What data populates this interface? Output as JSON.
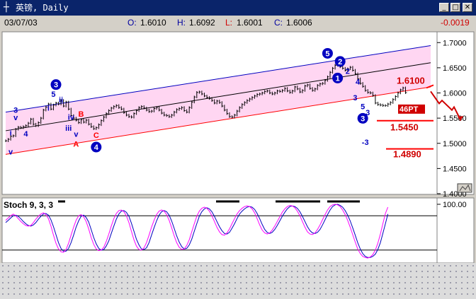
{
  "window": {
    "title": "英镑, Daily",
    "app_icon": "pitchfork-icon",
    "buttons": [
      "minimize-icon",
      "maximize-icon",
      "close-icon"
    ]
  },
  "info": {
    "date": "03/07/03",
    "open_label": "O:",
    "open": "1.6010",
    "high_label": "H:",
    "high": "1.6092",
    "low_label": "L:",
    "low": "1.6001",
    "close_label": "C:",
    "close": "1.6006",
    "change": "-0.0019"
  },
  "colors": {
    "background": "#ffffff",
    "channel_fill": "#ffd6f2",
    "channel_upper": "#0000c0",
    "channel_middle": "#000000",
    "channel_lower": "#ff0000",
    "wave_blue": "#0000c0",
    "wave_red": "#ff0000",
    "stoch_k": "#0000c0",
    "stoch_d": "#ff00ff"
  },
  "chart_data": [
    {
      "type": "line",
      "subtype": "price-bars",
      "x_count": 170,
      "ylim": [
        1.4,
        1.72
      ],
      "y_ticks": [
        "1.7000",
        "1.6500",
        "1.6000",
        "1.5500",
        "1.5000",
        "1.4500",
        "1.4000"
      ],
      "close": [
        1.505,
        1.508,
        1.514,
        1.515,
        1.528,
        1.532,
        1.531,
        1.533,
        1.535,
        1.54,
        1.548,
        1.538,
        1.535,
        1.541,
        1.55,
        1.566,
        1.572,
        1.578,
        1.568,
        1.576,
        1.58,
        1.578,
        1.585,
        1.574,
        1.582,
        1.568,
        1.555,
        1.55,
        1.546,
        1.541,
        1.547,
        1.542,
        1.546,
        1.538,
        1.533,
        1.529,
        1.531,
        1.537,
        1.545,
        1.552,
        1.559,
        1.565,
        1.57,
        1.573,
        1.575,
        1.571,
        1.568,
        1.561,
        1.556,
        1.553,
        1.552,
        1.559,
        1.565,
        1.571,
        1.573,
        1.57,
        1.566,
        1.563,
        1.564,
        1.569,
        1.571,
        1.566,
        1.56,
        1.556,
        1.555,
        1.553,
        1.556,
        1.562,
        1.567,
        1.569,
        1.571,
        1.565,
        1.562,
        1.571,
        1.582,
        1.592,
        1.601,
        1.602,
        1.598,
        1.594,
        1.591,
        1.589,
        1.585,
        1.58,
        1.584,
        1.581,
        1.574,
        1.566,
        1.559,
        1.553,
        1.552,
        1.556,
        1.564,
        1.571,
        1.577,
        1.581,
        1.585,
        1.588,
        1.591,
        1.594,
        1.597,
        1.598,
        1.6,
        1.603,
        1.604,
        1.6,
        1.598,
        1.6,
        1.604,
        1.603,
        1.605,
        1.609,
        1.604,
        1.601,
        1.604,
        1.612,
        1.608,
        1.602,
        1.605,
        1.614,
        1.616,
        1.609,
        1.605,
        1.608,
        1.615,
        1.618,
        1.619,
        1.625,
        1.632,
        1.641,
        1.649,
        1.655,
        1.66,
        1.652,
        1.649,
        1.645,
        1.648,
        1.651,
        1.645,
        1.638,
        1.628,
        1.619,
        1.613,
        1.605,
        1.601,
        1.6,
        1.595,
        1.58,
        1.577,
        1.576,
        1.575,
        1.575,
        1.578,
        1.581,
        1.587,
        1.593,
        1.6,
        1.606,
        1.61,
        1.6006
      ],
      "channel": {
        "upper": [
          [
            0,
            1.562
          ],
          [
            169,
            1.694
          ]
        ],
        "middle": [
          [
            0,
            1.525
          ],
          [
            169,
            1.66
          ]
        ],
        "lower": [
          [
            0,
            1.478
          ],
          [
            169,
            1.612
          ]
        ]
      },
      "wave_labels": [
        {
          "text": "i",
          "x": 2,
          "y": 1.516,
          "color": "blue",
          "circled": false
        },
        {
          "text": "v",
          "x": 2,
          "y": 1.478,
          "color": "blue",
          "circled": false
        },
        {
          "text": "3",
          "x": 4,
          "y": 1.561,
          "color": "blue",
          "circled": false
        },
        {
          "text": "v",
          "x": 4,
          "y": 1.546,
          "color": "blue",
          "circled": false
        },
        {
          "text": "4",
          "x": 8,
          "y": 1.514,
          "color": "blue",
          "circled": false
        },
        {
          "text": "3",
          "x": 20,
          "y": 1.611,
          "color": "blue",
          "circled": true
        },
        {
          "text": "5",
          "x": 19,
          "y": 1.592,
          "color": "blue",
          "circled": false
        },
        {
          "text": "ii",
          "x": 22,
          "y": 1.581,
          "color": "blue",
          "circled": false
        },
        {
          "text": "i",
          "x": 17,
          "y": 1.565,
          "color": "blue",
          "circled": false
        },
        {
          "text": "iv",
          "x": 26,
          "y": 1.547,
          "color": "blue",
          "circled": false
        },
        {
          "text": "B",
          "x": 30,
          "y": 1.553,
          "color": "red",
          "circled": false
        },
        {
          "text": "iii",
          "x": 25,
          "y": 1.525,
          "color": "blue",
          "circled": false
        },
        {
          "text": "v",
          "x": 28,
          "y": 1.513,
          "color": "blue",
          "circled": false
        },
        {
          "text": "A",
          "x": 28,
          "y": 1.493,
          "color": "red",
          "circled": false
        },
        {
          "text": "C",
          "x": 36,
          "y": 1.511,
          "color": "red",
          "circled": false
        },
        {
          "text": "4",
          "x": 36,
          "y": 1.487,
          "color": "blue",
          "circled": true
        },
        {
          "text": "5",
          "x": 128,
          "y": 1.673,
          "color": "blue",
          "circled": true
        },
        {
          "text": "2",
          "x": 133,
          "y": 1.657,
          "color": "blue",
          "circled": true
        },
        {
          "text": "2",
          "x": 136,
          "y": 1.638,
          "color": "blue",
          "circled": false
        },
        {
          "text": "1",
          "x": 132,
          "y": 1.624,
          "color": "blue",
          "circled": true
        },
        {
          "text": "4",
          "x": 140,
          "y": 1.617,
          "color": "blue",
          "circled": false
        },
        {
          "text": "3",
          "x": 139,
          "y": 1.585,
          "color": "blue",
          "circled": false
        },
        {
          "text": "5",
          "x": 142,
          "y": 1.568,
          "color": "blue",
          "circled": false
        },
        {
          "text": "3",
          "x": 144,
          "y": 1.556,
          "color": "blue",
          "circled": false
        },
        {
          "text": "3",
          "x": 142,
          "y": 1.544,
          "color": "blue",
          "circled": true
        },
        {
          "text": "-3",
          "x": 143,
          "y": 1.497,
          "color": "blue",
          "circled": false
        }
      ],
      "annotations": [
        {
          "text": "1.6100",
          "value": 1.61
        },
        {
          "text": "46PT",
          "value": 1.563
        },
        {
          "text": "1.5450",
          "value": 1.545
        },
        {
          "text": "1.4890",
          "value": 1.489
        }
      ]
    },
    {
      "type": "line",
      "title": "Stoch 9, 3, 3",
      "ylim": [
        0,
        100
      ],
      "y_ticks": [
        "100.00"
      ],
      "series": [
        {
          "values": [
            72,
            76,
            80,
            83,
            80,
            75,
            70,
            66,
            63,
            62,
            63,
            68,
            74,
            79,
            83,
            85,
            82,
            75,
            62,
            46,
            32,
            22,
            17,
            16,
            21,
            32,
            46,
            60,
            72,
            80,
            82,
            78,
            70,
            57,
            42,
            30,
            22,
            19,
            20,
            25,
            35,
            48,
            62,
            75,
            84,
            89,
            90,
            87,
            80,
            68,
            53,
            38,
            27,
            21,
            20,
            24,
            33,
            46,
            60,
            72,
            82,
            88,
            90,
            88,
            82,
            72,
            59,
            45,
            33,
            25,
            21,
            22,
            28,
            38,
            52,
            66,
            79,
            88,
            93,
            95,
            93,
            88,
            80,
            70,
            60,
            52,
            47,
            46,
            50,
            57,
            66,
            75,
            83,
            89,
            93,
            96,
            97,
            96,
            92,
            85,
            75,
            64,
            55,
            50,
            48,
            50,
            55,
            62,
            70,
            78,
            86,
            92,
            96,
            98,
            97,
            94,
            88,
            80,
            70,
            60,
            52,
            48,
            47,
            50,
            56,
            64,
            73,
            82,
            90,
            96,
            99,
            100,
            99,
            96,
            90,
            82,
            72,
            60,
            47,
            34,
            22,
            14,
            9,
            7,
            6,
            8,
            12,
            20,
            32,
            48,
            66,
            84,
            95
          ]
        },
        {
          "values": [
            68,
            72,
            76,
            80,
            81,
            79,
            75,
            70,
            66,
            63,
            62,
            64,
            68,
            74,
            79,
            83,
            84,
            81,
            73,
            61,
            47,
            33,
            23,
            18,
            18,
            23,
            33,
            46,
            60,
            71,
            79,
            81,
            77,
            69,
            56,
            42,
            31,
            23,
            20,
            21,
            27,
            36,
            49,
            62,
            74,
            83,
            88,
            89,
            86,
            79,
            67,
            53,
            39,
            29,
            22,
            21,
            24,
            33,
            46,
            59,
            71,
            81,
            87,
            89,
            87,
            81,
            71,
            58,
            45,
            34,
            26,
            22,
            23,
            29,
            39,
            53,
            66,
            79,
            87,
            92,
            94,
            92,
            87,
            79,
            70,
            61,
            54,
            49,
            48,
            51,
            58,
            66,
            75,
            83,
            88,
            92,
            95,
            96,
            95,
            91,
            84,
            75,
            65,
            56,
            51,
            49,
            51,
            56,
            63,
            71,
            79,
            86,
            92,
            96,
            97,
            96,
            93,
            87,
            79,
            70,
            61,
            54,
            50,
            49,
            51,
            56,
            64,
            73,
            82,
            90,
            96,
            99,
            100,
            98,
            95,
            89,
            81,
            71,
            59,
            46,
            33,
            22,
            14,
            9,
            7,
            7,
            9,
            13,
            21,
            33,
            49,
            66,
            83
          ]
        }
      ]
    }
  ]
}
